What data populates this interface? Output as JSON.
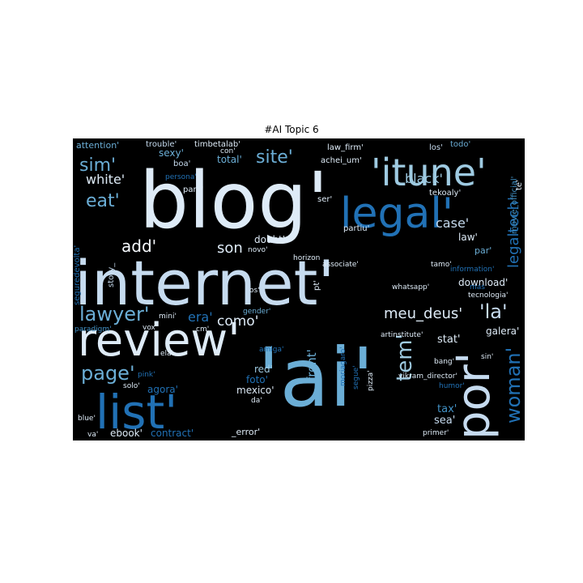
{
  "title": "#AI Topic 6",
  "colors": {
    "background": "#000000",
    "palette": [
      "#f7fbff",
      "#deebf7",
      "#c6dbef",
      "#9ecae1",
      "#6baed6",
      "#4292c6",
      "#2171b5",
      "#08519c"
    ]
  },
  "words": [
    {
      "text": "internet'",
      "weight": 1.0
    },
    {
      "text": "blog'",
      "weight": 0.95
    },
    {
      "text": "'ai'",
      "weight": 0.9
    },
    {
      "text": "review'",
      "weight": 0.72
    },
    {
      "text": "list'",
      "weight": 0.62
    },
    {
      "text": "'itune'",
      "weight": 0.58
    },
    {
      "text": "legal'",
      "weight": 0.55
    },
    {
      "text": "por'",
      "weight": 0.55
    },
    {
      "text": "woman'",
      "weight": 0.35
    },
    {
      "text": "lawyer'",
      "weight": 0.3
    },
    {
      "text": "page'",
      "weight": 0.3
    },
    {
      "text": "site'",
      "weight": 0.3
    },
    {
      "text": "sim'",
      "weight": 0.28
    },
    {
      "text": "tem'",
      "weight": 0.28
    },
    {
      "text": "'la'",
      "weight": 0.28
    },
    {
      "text": "eat'",
      "weight": 0.28
    },
    {
      "text": "legaltech'",
      "weight": 0.25
    },
    {
      "text": "meu_deus'",
      "weight": 0.22
    },
    {
      "text": "add'",
      "weight": 0.22
    },
    {
      "text": "son",
      "weight": 0.2
    },
    {
      "text": "como'",
      "weight": 0.2
    },
    {
      "text": "era'",
      "weight": 0.18
    },
    {
      "text": "case'",
      "weight": 0.18
    },
    {
      "text": "black'",
      "weight": 0.18
    },
    {
      "text": "white'",
      "weight": 0.18
    },
    {
      "text": "download'",
      "weight": 0.15
    },
    {
      "text": "foto'",
      "weight": 0.14
    },
    {
      "text": "front'",
      "weight": 0.14
    },
    {
      "text": "red'",
      "weight": 0.13
    },
    {
      "text": "mexico'",
      "weight": 0.13
    },
    {
      "text": "sea'",
      "weight": 0.13
    },
    {
      "text": "tax'",
      "weight": 0.12
    },
    {
      "text": "stat'",
      "weight": 0.12
    },
    {
      "text": "galera'",
      "weight": 0.12
    },
    {
      "text": "ebook'",
      "weight": 0.12
    },
    {
      "text": "contract'",
      "weight": 0.12
    },
    {
      "text": "agora'",
      "weight": 0.12
    },
    {
      "text": "doubt'",
      "weight": 0.12
    },
    {
      "text": "sexy'",
      "weight": 0.11
    },
    {
      "text": "law'",
      "weight": 0.11
    },
    {
      "text": "par'",
      "weight": 0.11
    },
    {
      "text": "total'",
      "weight": 0.11
    },
    {
      "text": "attention'",
      "weight": 0.1
    },
    {
      "text": "trouble'",
      "weight": 0.09
    },
    {
      "text": "timbetalab'",
      "weight": 0.09
    },
    {
      "text": "law_firm'",
      "weight": 0.09
    },
    {
      "text": "los'",
      "weight": 0.09
    },
    {
      "text": "todo'",
      "weight": 0.09
    },
    {
      "text": "con'",
      "weight": 0.09
    },
    {
      "text": "achei_um'",
      "weight": 0.09
    },
    {
      "text": "boa'",
      "weight": 0.09
    },
    {
      "text": "para'",
      "weight": 0.09
    },
    {
      "text": "ser'",
      "weight": 0.09
    },
    {
      "text": "tekoaly'",
      "weight": 0.09
    },
    {
      "text": "movie_official'",
      "weight": 0.09
    },
    {
      "text": "te'",
      "weight": 0.09
    },
    {
      "text": "partiu'",
      "weight": 0.09
    },
    {
      "text": "tamo'",
      "weight": 0.09
    },
    {
      "text": "novo'",
      "weight": 0.09
    },
    {
      "text": "associate'",
      "weight": 0.09
    },
    {
      "text": "horizon",
      "weight": 0.09
    },
    {
      "text": "story_",
      "weight": 0.09
    },
    {
      "text": "seguredevolta'",
      "weight": 0.09
    },
    {
      "text": "persona'",
      "weight": 0.09
    },
    {
      "text": "information'",
      "weight": 0.09
    },
    {
      "text": "mas",
      "weight": 0.09
    },
    {
      "text": "tecnologia'",
      "weight": 0.09
    },
    {
      "text": "whatsapp'",
      "weight": 0.09
    },
    {
      "text": "os'",
      "weight": 0.09
    },
    {
      "text": "pt'",
      "weight": 0.09
    },
    {
      "text": "gender'",
      "weight": 0.09
    },
    {
      "text": "mini'",
      "weight": 0.09
    },
    {
      "text": "cm'",
      "weight": 0.09
    },
    {
      "text": "paradigm'",
      "weight": 0.09
    },
    {
      "text": "vox'",
      "weight": 0.09
    },
    {
      "text": "amiga'",
      "weight": 0.09
    },
    {
      "text": "artinstitute'",
      "weight": 0.09
    },
    {
      "text": "bang'",
      "weight": 0.09
    },
    {
      "text": "sin'",
      "weight": 0.09
    },
    {
      "text": "ela'",
      "weight": 0.09
    },
    {
      "text": "pink'",
      "weight": 0.09
    },
    {
      "text": "solo'",
      "weight": 0.09
    },
    {
      "text": "moriagaro'",
      "weight": 0.09
    },
    {
      "text": "segue'",
      "weight": 0.09
    },
    {
      "text": "pizza'",
      "weight": 0.09
    },
    {
      "text": "vikram_director'",
      "weight": 0.09
    },
    {
      "text": "humor'",
      "weight": 0.09
    },
    {
      "text": "da'",
      "weight": 0.09
    },
    {
      "text": "blue'",
      "weight": 0.09
    },
    {
      "text": "va'",
      "weight": 0.09
    },
    {
      "text": "primer'",
      "weight": 0.09
    },
    {
      "text": "_error'",
      "weight": 0.09
    }
  ]
}
